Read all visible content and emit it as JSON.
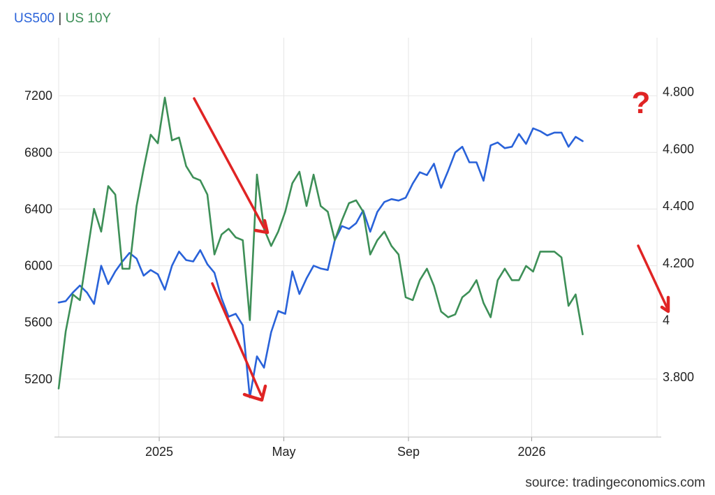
{
  "legend": {
    "series1": "US500",
    "separator": "|",
    "series2": "US 10Y"
  },
  "source": "source: tradingeconomics.com",
  "annotation_mark": "?",
  "colors": {
    "series1": "#2962d9",
    "series2": "#3d8f57",
    "annotation": "#e02424",
    "grid": "#e6e6e6"
  },
  "chart_data": {
    "type": "line",
    "x_ticks": [
      "2025",
      "May",
      "Sep",
      "2026"
    ],
    "left_axis": {
      "ticks": [
        "5200",
        "5600",
        "6000",
        "6400",
        "6800",
        "7200"
      ],
      "range": [
        4790,
        7610
      ]
    },
    "right_axis": {
      "ticks": [
        "3.800",
        "4",
        "4.200",
        "4.400",
        "4.600",
        "4.800"
      ],
      "range": [
        3.59,
        4.99
      ]
    },
    "grid": true,
    "x_range": [
      0,
      84.5
    ],
    "series": [
      {
        "name": "US500",
        "axis": "left",
        "values": [
          5740,
          5750,
          5810,
          5860,
          5810,
          5730,
          6000,
          5870,
          5960,
          6030,
          6090,
          6050,
          5930,
          5970,
          5940,
          5830,
          6000,
          6100,
          6040,
          6030,
          6110,
          6010,
          5950,
          5770,
          5640,
          5660,
          5580,
          5070,
          5360,
          5280,
          5530,
          5680,
          5660,
          5960,
          5800,
          5910,
          6000,
          5980,
          5970,
          6180,
          6280,
          6260,
          6300,
          6390,
          6240,
          6380,
          6450,
          6470,
          6460,
          6480,
          6580,
          6660,
          6640,
          6720,
          6550,
          6670,
          6800,
          6840,
          6730,
          6730,
          6600,
          6850,
          6870,
          6830,
          6840,
          6930,
          6860,
          6970,
          6950,
          6920,
          6940,
          6940,
          6840,
          6910,
          6880
        ]
      },
      {
        "name": "US 10Y",
        "axis": "right",
        "values": [
          3.76,
          3.96,
          4.09,
          4.07,
          4.23,
          4.39,
          4.31,
          4.47,
          4.44,
          4.18,
          4.18,
          4.4,
          4.53,
          4.65,
          4.62,
          4.78,
          4.63,
          4.64,
          4.54,
          4.5,
          4.49,
          4.44,
          4.23,
          4.3,
          4.32,
          4.29,
          4.28,
          4.0,
          4.51,
          4.32,
          4.26,
          4.31,
          4.38,
          4.48,
          4.52,
          4.4,
          4.51,
          4.4,
          4.38,
          4.28,
          4.35,
          4.41,
          4.42,
          4.38,
          4.23,
          4.28,
          4.31,
          4.26,
          4.23,
          4.08,
          4.07,
          4.14,
          4.18,
          4.12,
          4.03,
          4.01,
          4.02,
          4.08,
          4.1,
          4.14,
          4.06,
          4.01,
          4.14,
          4.18,
          4.14,
          4.14,
          4.19,
          4.17,
          4.24,
          4.24,
          4.24,
          4.22,
          4.05,
          4.09,
          3.95
        ]
      }
    ]
  }
}
